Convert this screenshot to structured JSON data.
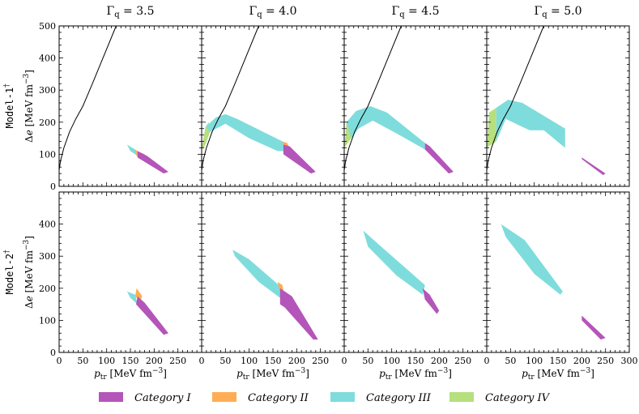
{
  "chart_data": {
    "type": "area",
    "description_free": true,
    "columns": [
      {
        "gamma_symbol": "Γ",
        "gamma_sub": "q",
        "gamma_value": "= 3.5"
      },
      {
        "gamma_symbol": "Γ",
        "gamma_sub": "q",
        "gamma_value": "= 4.0"
      },
      {
        "gamma_symbol": "Γ",
        "gamma_sub": "q",
        "gamma_value": "= 4.5"
      },
      {
        "gamma_symbol": "Γ",
        "gamma_sub": "q",
        "gamma_value": "= 5.0"
      }
    ],
    "rows": [
      {
        "model": "Model-1",
        "sup": "†"
      },
      {
        "model": "Model-2",
        "sup": "†"
      }
    ],
    "ylabel": {
      "delta": "Δ",
      "var": "e",
      "unit": "[MeV fm",
      "exp": "−3",
      "close": "]"
    },
    "xlabel": {
      "var": "p",
      "sub": "tr",
      "unit": "[MeV fm",
      "exp": "−3",
      "close": "]"
    },
    "xlim": [
      0,
      300
    ],
    "ylim_row1": [
      0,
      500
    ],
    "ylim_row2": [
      0,
      500
    ],
    "x_ticks_panel": [
      0,
      50,
      100,
      150,
      200,
      250
    ],
    "x_ticks_last": [
      0,
      50,
      100,
      150,
      200,
      250,
      300
    ],
    "y_ticks_row1": [
      0,
      100,
      200,
      300,
      400,
      500
    ],
    "y_ticks_row2": [
      0,
      100,
      200,
      300,
      400
    ],
    "colors": {
      "Category I": "#b455b9",
      "Category II": "#ffad55",
      "Category III": "#7fdcdc",
      "Category IV": "#b6df7e",
      "curve": "#000000"
    },
    "legend": [
      "Category I",
      "Category II",
      "Category III",
      "Category IV"
    ],
    "curve": [
      [
        0,
        50
      ],
      [
        3,
        80
      ],
      [
        10,
        120
      ],
      [
        22,
        170
      ],
      [
        35,
        210
      ],
      [
        50,
        250
      ],
      [
        70,
        320
      ],
      [
        95,
        410
      ],
      [
        120,
        500
      ]
    ],
    "panels": [
      {
        "row": 0,
        "col": 0,
        "curve": true,
        "regions": [
          {
            "cat": "Category III",
            "pts": [
              [
                143,
                130
              ],
              [
                160,
                115
              ],
              [
                165,
                95
              ],
              [
                150,
                110
              ]
            ]
          },
          {
            "cat": "Category II",
            "pts": [
              [
                160,
                115
              ],
              [
                165,
                110
              ],
              [
                180,
                100
              ],
              [
                170,
                85
              ],
              [
                163,
                95
              ]
            ]
          },
          {
            "cat": "Category I",
            "pts": [
              [
                165,
                110
              ],
              [
                185,
                95
              ],
              [
                230,
                45
              ],
              [
                220,
                40
              ],
              [
                165,
                90
              ]
            ]
          }
        ]
      },
      {
        "row": 0,
        "col": 1,
        "curve": true,
        "regions": [
          {
            "cat": "Category IV",
            "pts": [
              [
                0,
                120
              ],
              [
                8,
                185
              ],
              [
                15,
                200
              ],
              [
                18,
                170
              ],
              [
                5,
                120
              ]
            ]
          },
          {
            "cat": "Category III",
            "pts": [
              [
                8,
                185
              ],
              [
                30,
                215
              ],
              [
                50,
                225
              ],
              [
                75,
                210
              ],
              [
                170,
                140
              ],
              [
                175,
                110
              ],
              [
                160,
                110
              ],
              [
                100,
                150
              ],
              [
                50,
                195
              ],
              [
                18,
                170
              ]
            ]
          },
          {
            "cat": "Category II",
            "pts": [
              [
                170,
                140
              ],
              [
                180,
                135
              ],
              [
                185,
                120
              ],
              [
                175,
                110
              ]
            ]
          },
          {
            "cat": "Category I",
            "pts": [
              [
                172,
                130
              ],
              [
                185,
                125
              ],
              [
                240,
                45
              ],
              [
                230,
                40
              ],
              [
                172,
                100
              ]
            ]
          }
        ]
      },
      {
        "row": 0,
        "col": 2,
        "curve": true,
        "regions": [
          {
            "cat": "Category IV",
            "pts": [
              [
                0,
                120
              ],
              [
                5,
                200
              ],
              [
                18,
                210
              ],
              [
                15,
                150
              ]
            ]
          },
          {
            "cat": "Category III",
            "pts": [
              [
                5,
                200
              ],
              [
                25,
                235
              ],
              [
                55,
                250
              ],
              [
                90,
                230
              ],
              [
                170,
                135
              ],
              [
                170,
                115
              ],
              [
                110,
                165
              ],
              [
                60,
                205
              ],
              [
                30,
                180
              ],
              [
                15,
                150
              ]
            ]
          },
          {
            "cat": "Category I",
            "pts": [
              [
                170,
                135
              ],
              [
                180,
                125
              ],
              [
                230,
                45
              ],
              [
                220,
                40
              ],
              [
                170,
                115
              ]
            ]
          }
        ]
      },
      {
        "row": 0,
        "col": 3,
        "curve": true,
        "regions": [
          {
            "cat": "Category IV",
            "pts": [
              [
                0,
                120
              ],
              [
                5,
                230
              ],
              [
                20,
                245
              ],
              [
                20,
                140
              ],
              [
                5,
                125
              ]
            ]
          },
          {
            "cat": "Category III",
            "pts": [
              [
                20,
                245
              ],
              [
                45,
                270
              ],
              [
                75,
                260
              ],
              [
                165,
                180
              ],
              [
                165,
                120
              ],
              [
                120,
                175
              ],
              [
                90,
                175
              ],
              [
                40,
                210
              ],
              [
                20,
                140
              ]
            ]
          },
          {
            "cat": "Category I",
            "pts": [
              [
                200,
                90
              ],
              [
                250,
                40
              ],
              [
                245,
                35
              ],
              [
                200,
                85
              ]
            ]
          }
        ]
      },
      {
        "row": 1,
        "col": 0,
        "curve": false,
        "regions": [
          {
            "cat": "Category III",
            "pts": [
              [
                143,
                190
              ],
              [
                160,
                180
              ],
              [
                165,
                150
              ],
              [
                150,
                170
              ]
            ]
          },
          {
            "cat": "Category II",
            "pts": [
              [
                163,
                200
              ],
              [
                175,
                175
              ],
              [
                170,
                160
              ],
              [
                160,
                175
              ]
            ]
          },
          {
            "cat": "Category I",
            "pts": [
              [
                165,
                175
              ],
              [
                180,
                155
              ],
              [
                230,
                60
              ],
              [
                220,
                55
              ],
              [
                162,
                150
              ]
            ]
          }
        ]
      },
      {
        "row": 1,
        "col": 1,
        "curve": false,
        "regions": [
          {
            "cat": "Category III",
            "pts": [
              [
                65,
                320
              ],
              [
                100,
                290
              ],
              [
                170,
                200
              ],
              [
                165,
                170
              ],
              [
                120,
                220
              ],
              [
                70,
                300
              ]
            ]
          },
          {
            "cat": "Category II",
            "pts": [
              [
                160,
                220
              ],
              [
                170,
                210
              ],
              [
                172,
                195
              ],
              [
                165,
                185
              ]
            ]
          },
          {
            "cat": "Category I",
            "pts": [
              [
                165,
                200
              ],
              [
                190,
                175
              ],
              [
                245,
                40
              ],
              [
                235,
                40
              ],
              [
                175,
                140
              ],
              [
                165,
                150
              ]
            ]
          }
        ]
      },
      {
        "row": 1,
        "col": 2,
        "curve": false,
        "regions": [
          {
            "cat": "Category III",
            "pts": [
              [
                40,
                380
              ],
              [
                70,
                340
              ],
              [
                170,
                210
              ],
              [
                165,
                180
              ],
              [
                110,
                240
              ],
              [
                50,
                330
              ]
            ]
          },
          {
            "cat": "Category I",
            "pts": [
              [
                165,
                200
              ],
              [
                180,
                180
              ],
              [
                200,
                130
              ],
              [
                195,
                120
              ],
              [
                170,
                165
              ]
            ]
          }
        ]
      },
      {
        "row": 1,
        "col": 3,
        "curve": false,
        "regions": [
          {
            "cat": "Category III",
            "pts": [
              [
                30,
                400
              ],
              [
                80,
                350
              ],
              [
                160,
                190
              ],
              [
                155,
                180
              ],
              [
                100,
                245
              ],
              [
                40,
                360
              ]
            ]
          },
          {
            "cat": "Category I",
            "pts": [
              [
                200,
                115
              ],
              [
                250,
                45
              ],
              [
                240,
                40
              ],
              [
                200,
                100
              ]
            ]
          }
        ]
      }
    ]
  }
}
